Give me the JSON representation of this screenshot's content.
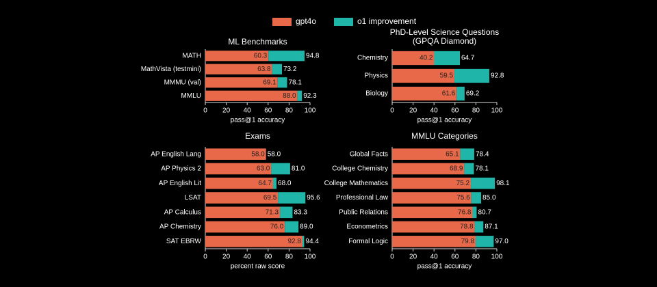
{
  "chart_data": [
    {
      "type": "hbar_stacked",
      "title": "ML Benchmarks",
      "categories": [
        "MATH",
        "MathVista (testmini)",
        "MMMU (val)",
        "MMLU"
      ],
      "series": [
        {
          "name": "gpt4o",
          "color": "#e8694a",
          "values": [
            60.3,
            63.8,
            69.1,
            88
          ],
          "value_labels": [
            "60.3",
            "63.8",
            "69.1",
            "88.0"
          ]
        },
        {
          "name": "o1 improvement",
          "color": "#1fb5a8",
          "values": [
            34.5,
            9.4,
            9,
            4.3
          ]
        }
      ],
      "totals": [
        94.8,
        73.2,
        78.1,
        92.3
      ],
      "total_labels": [
        "94.8",
        "73.2",
        "78.1",
        "92.3"
      ],
      "xlim": [
        0,
        100
      ],
      "xticks": [
        0,
        20,
        40,
        60,
        80,
        100
      ],
      "xlabel": "pass@1 accuracy"
    },
    {
      "type": "hbar_stacked",
      "title": "PhD-Level Science Questions",
      "subtitle": "(GPQA Diamond)",
      "categories": [
        "Chemistry",
        "Physics",
        "Biology"
      ],
      "series": [
        {
          "name": "gpt4o",
          "color": "#e8694a",
          "values": [
            40.2,
            59.5,
            61.6
          ]
        },
        {
          "name": "o1 improvement",
          "color": "#1fb5a8",
          "values": [
            24.5,
            33.3,
            7.6
          ]
        }
      ],
      "totals": [
        64.7,
        92.8,
        69.2
      ],
      "total_labels": [
        "64.7",
        "92.8",
        "69.2"
      ],
      "xlim": [
        0,
        100
      ],
      "xticks": [
        0,
        20,
        40,
        60,
        80,
        100
      ],
      "xlabel": "pass@1 accuracy"
    },
    {
      "type": "hbar_stacked",
      "title": "Exams",
      "categories": [
        "AP English Lang",
        "AP Physics 2",
        "AP English Lit",
        "LSAT",
        "AP Calculus",
        "AP Chemistry",
        "SAT EBRW"
      ],
      "series": [
        {
          "name": "gpt4o",
          "color": "#e8694a",
          "values": [
            58,
            63,
            64.7,
            69.5,
            71.3,
            76,
            92.8
          ],
          "value_labels": [
            "58.0",
            "63.0",
            "64.7",
            "69.5",
            "71.3",
            "76.0",
            "92.8"
          ]
        },
        {
          "name": "o1 improvement",
          "color": "#1fb5a8",
          "values": [
            0,
            18,
            3.3,
            26.1,
            12,
            13,
            1.6
          ]
        }
      ],
      "totals": [
        58,
        81,
        68,
        95.6,
        83.3,
        89,
        94.4
      ],
      "total_labels": [
        "58.0",
        "81.0",
        "68.0",
        "95.6",
        "83.3",
        "89.0",
        "94.4"
      ],
      "xlim": [
        0,
        100
      ],
      "xticks": [
        0,
        20,
        40,
        60,
        80,
        100
      ],
      "xlabel": "percent raw score"
    },
    {
      "type": "hbar_stacked",
      "title": "MMLU Categories",
      "categories": [
        "Global Facts",
        "College Chemistry",
        "College Mathematics",
        "Professional Law",
        "Public Relations",
        "Econometrics",
        "Formal Logic"
      ],
      "series": [
        {
          "name": "gpt4o",
          "color": "#e8694a",
          "values": [
            65.1,
            68.9,
            75.2,
            75.6,
            76.8,
            78.8,
            79.8
          ]
        },
        {
          "name": "o1 improvement",
          "color": "#1fb5a8",
          "values": [
            13.3,
            9.2,
            22.9,
            9.4,
            3.9,
            8.3,
            17.2
          ]
        }
      ],
      "totals": [
        78.4,
        78.1,
        98.1,
        85,
        80.7,
        87.1,
        97
      ],
      "total_labels": [
        "78.4",
        "78.1",
        "98.1",
        "85.0",
        "80.7",
        "87.1",
        "97.0"
      ],
      "xlim": [
        0,
        100
      ],
      "xticks": [
        0,
        20,
        40,
        60,
        80,
        100
      ],
      "xlabel": "pass@1 accuracy"
    }
  ]
}
